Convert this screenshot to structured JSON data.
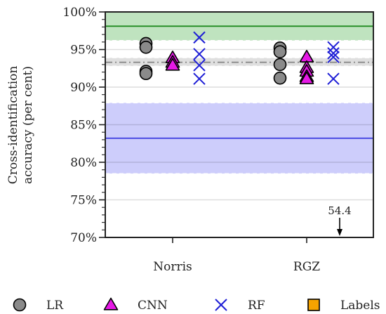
{
  "chart_data": {
    "type": "scatter",
    "ylabel": [
      "Cross-identification",
      "accuracy (per cent)"
    ],
    "ylim": [
      70,
      100
    ],
    "yticks": [
      70,
      75,
      80,
      85,
      90,
      95,
      100
    ],
    "ytick_labels": [
      "70%",
      "75%",
      "80%",
      "85%",
      "90%",
      "95%",
      "100%"
    ],
    "categories": [
      "Norris",
      "RGZ"
    ],
    "grid": "horizontal",
    "colors": {
      "LR": "#8a8a8a",
      "CNN": "#e619e6",
      "RF": "#1f1fd6",
      "Labels": "#f5a300",
      "green_band": "#b8e0b8",
      "green_line": "#1e8a1e",
      "grey_band": "#dcdcdc",
      "grey_line": "#8a8a8a",
      "blue_band": "#c8c8fb",
      "blue_line": "#3a3ae0"
    },
    "series": [
      {
        "name": "LR",
        "marker": "circle",
        "points": {
          "Norris": [
            95.8,
            95.3,
            92.1,
            91.8
          ],
          "RGZ": [
            95.2,
            94.7,
            93.0,
            91.2
          ]
        }
      },
      {
        "name": "CNN",
        "marker": "triangle",
        "points": {
          "Norris": [
            93.9,
            93.3,
            92.9
          ],
          "RGZ": [
            94.0,
            92.6,
            92.1,
            91.4,
            91.1
          ]
        }
      },
      {
        "name": "RF",
        "marker": "x",
        "points": {
          "Norris": [
            96.6,
            94.4,
            92.9,
            91.1
          ],
          "RGZ": [
            95.3,
            94.5,
            94.0,
            91.1
          ]
        }
      },
      {
        "name": "Labels",
        "marker": "square",
        "points": {
          "Norris": [],
          "RGZ": []
        }
      }
    ],
    "reference_bands": [
      {
        "band": [
          96.2,
          100
        ],
        "line": 98.1,
        "color_key": "green"
      },
      {
        "band": [
          92.8,
          93.9
        ],
        "line": 93.3,
        "color_key": "grey",
        "line_style": "dashdot"
      },
      {
        "band": [
          78.5,
          87.9
        ],
        "line": 83.2,
        "color_key": "blue"
      }
    ],
    "annotation": {
      "text": "54.4",
      "value": 54.4,
      "category": "RGZ",
      "direction": "down"
    },
    "legend": {
      "placement": "bottom",
      "entries": [
        "LR",
        "CNN",
        "RF",
        "Labels"
      ]
    }
  }
}
